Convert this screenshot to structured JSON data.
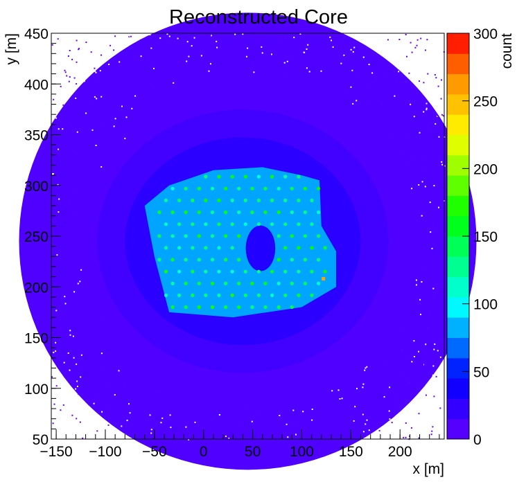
{
  "chart_data": {
    "type": "heatmap",
    "title": "Reconstructed Core",
    "xlabel": "x [m]",
    "ylabel": "y [m]",
    "zlabel": "count",
    "xlim": [
      -155,
      245
    ],
    "ylim": [
      50,
      450
    ],
    "zlim": [
      0,
      300
    ],
    "x_ticks": [
      -150,
      -100,
      -50,
      0,
      50,
      100,
      150,
      200
    ],
    "y_ticks": [
      50,
      100,
      150,
      200,
      250,
      300,
      350,
      400,
      450
    ],
    "z_ticks": [
      0,
      50,
      100,
      150,
      200,
      250,
      300
    ],
    "palette_steps": 20,
    "background_level": 10,
    "core_region_level": 80,
    "core_region": [
      [
        -60,
        280
      ],
      [
        -35,
        300
      ],
      [
        10,
        315
      ],
      [
        60,
        318
      ],
      [
        100,
        310
      ],
      [
        118,
        305
      ],
      [
        120,
        260
      ],
      [
        135,
        235
      ],
      [
        135,
        200
      ],
      [
        100,
        180
      ],
      [
        30,
        170
      ],
      [
        -35,
        175
      ],
      [
        -50,
        230
      ],
      [
        -60,
        280
      ]
    ],
    "detector_hole": {
      "center": [
        58,
        238
      ],
      "radius": 15
    },
    "detector_grid": {
      "x_range": [
        -45,
        125
      ],
      "y_range": [
        180,
        310
      ],
      "spacing": 13.5,
      "level": 140
    },
    "peak": {
      "x": 122,
      "y": 208,
      "count": 260
    },
    "grid": false,
    "legend": "colorbar-right"
  }
}
